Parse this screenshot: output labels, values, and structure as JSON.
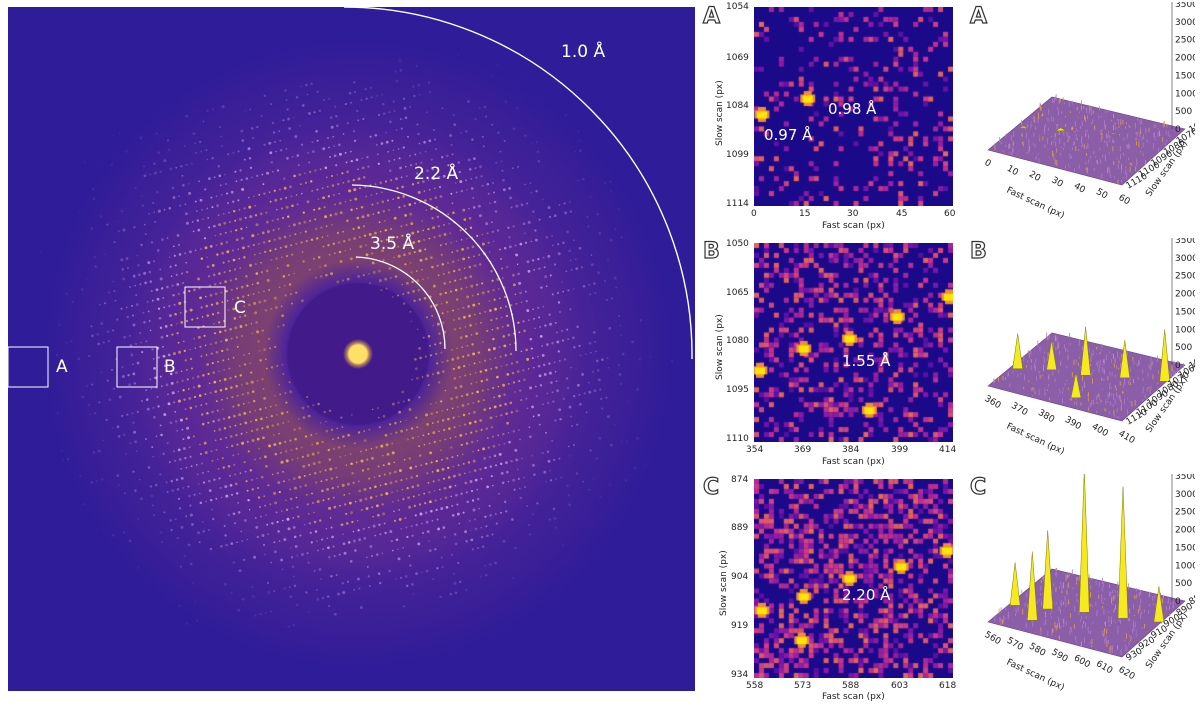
{
  "main_pattern": {
    "rings": [
      "1.0 Å",
      "2.2 Å",
      "3.5 Å"
    ],
    "box_labels": [
      "A",
      "B",
      "C"
    ]
  },
  "panels": [
    {
      "letter": "A",
      "heatmap": {
        "y_ticks": [
          "1054",
          "1069",
          "1084",
          "1099",
          "1114"
        ],
        "x_ticks": [
          "0",
          "15",
          "30",
          "45",
          "60"
        ],
        "xlabel": "Fast scan (px)",
        "ylabel": "Slow scan (px)",
        "annotations": [
          "0.98 Å",
          "0.97 Å"
        ]
      },
      "surface": {
        "z_ticks": [
          "4000",
          "3500",
          "3000",
          "2500",
          "2000",
          "1500",
          "1000",
          "500",
          "0"
        ],
        "x_ticks": [
          "0",
          "10",
          "20",
          "30",
          "40",
          "50",
          "60"
        ],
        "y_ticks": [
          "1060",
          "1070",
          "1080",
          "1090",
          "1100",
          "1110"
        ],
        "xlabel": "Fast scan (px)",
        "ylabel": "Slow scan (px)",
        "peak_max": 600
      }
    },
    {
      "letter": "B",
      "heatmap": {
        "y_ticks": [
          "1050",
          "1065",
          "1080",
          "1095",
          "1110"
        ],
        "x_ticks": [
          "354",
          "369",
          "384",
          "399",
          "414"
        ],
        "xlabel": "Fast scan (px)",
        "ylabel": "Slow scan (px)",
        "annotations": [
          "1.55 Å"
        ]
      },
      "surface": {
        "z_ticks": [
          "4000",
          "3500",
          "3000",
          "2500",
          "2000",
          "1500",
          "1000",
          "500",
          "0"
        ],
        "x_ticks": [
          "360",
          "370",
          "380",
          "390",
          "400",
          "410"
        ],
        "y_ticks": [
          "1050",
          "1060",
          "1070",
          "1080",
          "1090",
          "1100",
          "1110"
        ],
        "xlabel": "Fast scan (px)",
        "ylabel": "Slow scan (px)",
        "peak_max": 2400
      }
    },
    {
      "letter": "C",
      "heatmap": {
        "y_ticks": [
          "874",
          "889",
          "904",
          "919",
          "934"
        ],
        "x_ticks": [
          "558",
          "573",
          "588",
          "603",
          "618"
        ],
        "xlabel": "Fast scan (px)",
        "ylabel": "Slow scan (px)",
        "annotations": [
          "2.20 Å"
        ]
      },
      "surface": {
        "z_ticks": [
          "4000",
          "3500",
          "3000",
          "2500",
          "2000",
          "1500",
          "1000",
          "500",
          "0"
        ],
        "x_ticks": [
          "560",
          "570",
          "580",
          "590",
          "600",
          "610",
          "620"
        ],
        "y_ticks": [
          "880",
          "890",
          "900",
          "910",
          "920",
          "930"
        ],
        "xlabel": "Fast scan (px)",
        "ylabel": "Slow scan (px)",
        "peak_max": 4100
      }
    }
  ],
  "colors": {
    "background": "#2e1c98",
    "peak": "#ffe600",
    "ring": "#ffffff"
  }
}
